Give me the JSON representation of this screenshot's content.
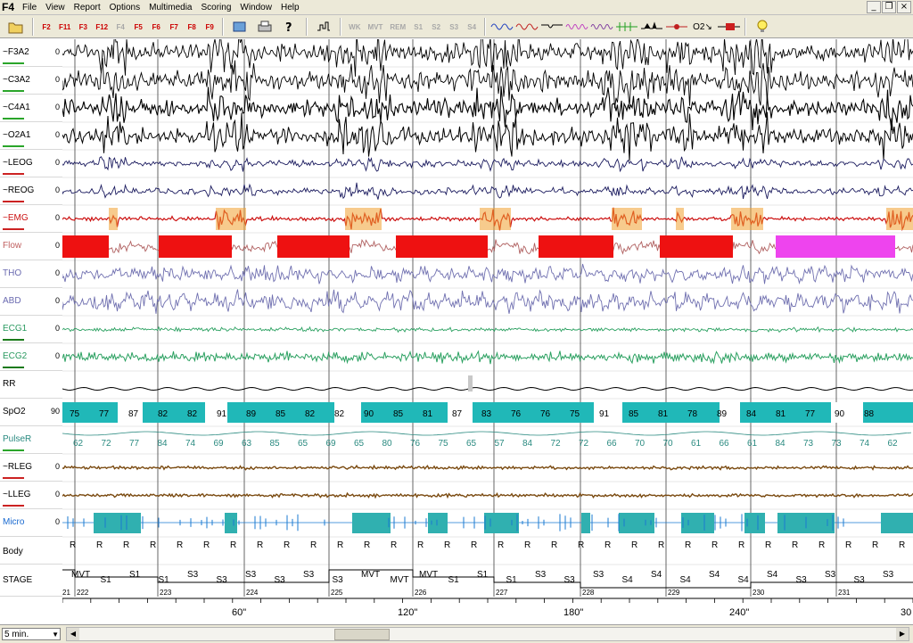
{
  "app": {
    "name": "F4"
  },
  "menu": [
    "File",
    "View",
    "Report",
    "Options",
    "Multimedia",
    "Scoring",
    "Window",
    "Help"
  ],
  "window_controls": [
    "_",
    "❐",
    "×"
  ],
  "toolbar": {
    "fkeys": [
      {
        "label": "F2",
        "state": "active"
      },
      {
        "label": "F11",
        "state": "active"
      },
      {
        "label": "F3",
        "state": "active"
      },
      {
        "label": "F12",
        "state": "active"
      },
      {
        "label": "F4",
        "state": "disabled"
      },
      {
        "label": "F5",
        "state": "active"
      },
      {
        "label": "F6",
        "state": "active"
      },
      {
        "label": "F7",
        "state": "active"
      },
      {
        "label": "F8",
        "state": "active"
      },
      {
        "label": "F9",
        "state": "active"
      }
    ],
    "stage_buttons": [
      {
        "label": "WK"
      },
      {
        "label": "MVT"
      },
      {
        "label": "REM"
      },
      {
        "label": "S1"
      },
      {
        "label": "S2"
      },
      {
        "label": "S3"
      },
      {
        "label": "S4"
      }
    ],
    "o2_label": "O2↘"
  },
  "channels": [
    {
      "name": "~F3A2",
      "zero": "0",
      "color": "#000000",
      "label_color": "#000000",
      "underline": "#2aa52a"
    },
    {
      "name": "~C3A2",
      "zero": "0",
      "color": "#000000",
      "label_color": "#000000",
      "underline": "#2aa52a"
    },
    {
      "name": "~C4A1",
      "zero": "0",
      "color": "#000000",
      "label_color": "#000000",
      "underline": "#2aa52a"
    },
    {
      "name": "~O2A1",
      "zero": "0",
      "color": "#000000",
      "label_color": "#000000",
      "underline": "#2aa52a"
    },
    {
      "name": "~LEOG",
      "zero": "0",
      "color": "#1a1a5e",
      "label_color": "#000000",
      "underline": "#cc2222"
    },
    {
      "name": "~REOG",
      "zero": "0",
      "color": "#1a1a5e",
      "label_color": "#000000",
      "underline": "#cc2222"
    },
    {
      "name": "~EMG",
      "zero": "0",
      "color": "#cc1111",
      "label_color": "#cc1111",
      "underline": "#cc2222"
    },
    {
      "name": "Flow",
      "zero": "0",
      "color": "#b06060",
      "label_color": "#c06060",
      "underline": ""
    },
    {
      "name": "THO",
      "zero": "0",
      "color": "#7070b0",
      "label_color": "#6a6ab0",
      "underline": ""
    },
    {
      "name": "ABD",
      "zero": "0",
      "color": "#7070b0",
      "label_color": "#6a6ab0",
      "underline": ""
    },
    {
      "name": "ECG1",
      "zero": "0",
      "color": "#2aa060",
      "label_color": "#2a9a60",
      "underline": "#1a7a1a"
    },
    {
      "name": "ECG2",
      "zero": "0",
      "color": "#2aa060",
      "label_color": "#2a9a60",
      "underline": "#1a7a1a"
    },
    {
      "name": "RR",
      "zero": "",
      "color": "#000000",
      "label_color": "#000000",
      "underline": ""
    },
    {
      "name": "SpO2",
      "zero": "90",
      "color": "#000000",
      "label_color": "#000000",
      "underline": ""
    },
    {
      "name": "PulseR",
      "zero": "",
      "color": "#2a8a80",
      "label_color": "#2a8a80",
      "underline": "#2aa52a"
    },
    {
      "name": "~RLEG",
      "zero": "0",
      "color": "#7a4a10",
      "label_color": "#000000",
      "underline": "#cc2222"
    },
    {
      "name": "~LLEG",
      "zero": "0",
      "color": "#7a4a10",
      "label_color": "#000000",
      "underline": "#cc2222"
    },
    {
      "name": "Micro",
      "zero": "0",
      "color": "#1a7ad0",
      "label_color": "#1a6ad0",
      "underline": ""
    },
    {
      "name": "Body",
      "zero": "",
      "color": "#000000",
      "label_color": "#000000",
      "underline": ""
    },
    {
      "name": "STAGE",
      "zero": "",
      "color": "#000000",
      "label_color": "#000000",
      "underline": ""
    }
  ],
  "events": {
    "flow_apneas": [
      {
        "start": 0,
        "end": 52,
        "color": "#ee1111"
      },
      {
        "start": 108,
        "end": 190,
        "color": "#ee1111"
      },
      {
        "start": 241,
        "end": 322,
        "color": "#ee1111"
      },
      {
        "start": 374,
        "end": 477,
        "color": "#ee1111"
      },
      {
        "start": 534,
        "end": 618,
        "color": "#ee1111"
      },
      {
        "start": 670,
        "end": 752,
        "color": "#ee1111"
      },
      {
        "start": 800,
        "end": 934,
        "color": "#ee44ee"
      }
    ],
    "emg_bursts": [
      {
        "start": 52,
        "end": 62
      },
      {
        "start": 172,
        "end": 206
      },
      {
        "start": 317,
        "end": 358
      },
      {
        "start": 468,
        "end": 503
      },
      {
        "start": 616,
        "end": 650
      },
      {
        "start": 688,
        "end": 697
      },
      {
        "start": 750,
        "end": 786
      },
      {
        "start": 924,
        "end": 954
      }
    ],
    "micro_arousals": [
      {
        "start": 35,
        "end": 88
      },
      {
        "start": 182,
        "end": 196
      },
      {
        "start": 325,
        "end": 368
      },
      {
        "start": 410,
        "end": 432
      },
      {
        "start": 473,
        "end": 512
      },
      {
        "start": 582,
        "end": 592
      },
      {
        "start": 624,
        "end": 664
      },
      {
        "start": 694,
        "end": 731
      },
      {
        "start": 765,
        "end": 788
      },
      {
        "start": 802,
        "end": 866
      },
      {
        "start": 918,
        "end": 954
      }
    ],
    "spo2_labels": [
      "75",
      "77",
      "87",
      "82",
      "82",
      "91",
      "89",
      "85",
      "82",
      "82",
      "90",
      "85",
      "81",
      "87",
      "83",
      "76",
      "76",
      "75",
      "91",
      "85",
      "81",
      "78",
      "89",
      "84",
      "81",
      "77",
      "90",
      "88"
    ],
    "pulse_labels": [
      "62",
      "72",
      "77",
      "84",
      "74",
      "69",
      "63",
      "85",
      "65",
      "69",
      "65",
      "80",
      "76",
      "75",
      "65",
      "57",
      "84",
      "72",
      "72",
      "66",
      "70",
      "70",
      "61",
      "66",
      "61",
      "84",
      "73",
      "73",
      "74",
      "62"
    ],
    "stage_labels": [
      "MVT",
      "S1",
      "S1",
      "S1",
      "S3",
      "S3",
      "S3",
      "S3",
      "S3",
      "S3",
      "MVT",
      "MVT",
      "MVT",
      "S1",
      "S1",
      "S1",
      "S3",
      "S3",
      "S3",
      "S4",
      "S4",
      "S4",
      "S4",
      "S4",
      "S4",
      "S3",
      "S3",
      "S3",
      "S3"
    ],
    "epoch_numbers": [
      "21",
      "222",
      "223",
      "224",
      "225",
      "226",
      "227",
      "228",
      "229",
      "230",
      "231"
    ]
  },
  "time_axis": {
    "ticks": [
      "60\"",
      "120\"",
      "180\"",
      "240\"",
      "30"
    ]
  },
  "status": {
    "scale": "5 min."
  }
}
